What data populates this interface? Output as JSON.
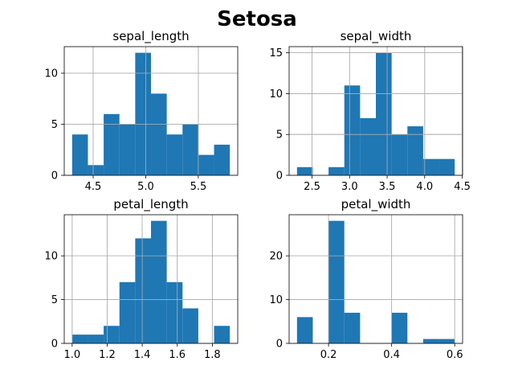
{
  "title": "Setosa",
  "chart_data": [
    {
      "type": "bar",
      "title": "sepal_length",
      "bin_edges": [
        4.3,
        4.45,
        4.6,
        4.75,
        4.9,
        5.05,
        5.2,
        5.35,
        5.5,
        5.65,
        5.8
      ],
      "counts": [
        4,
        1,
        6,
        5,
        12,
        8,
        4,
        5,
        2,
        3
      ],
      "xlim": [
        4.225,
        5.875
      ],
      "ylim": [
        0,
        12.6
      ],
      "xticks": [
        4.5,
        5.0,
        5.5
      ],
      "xtick_labels": [
        "4.5",
        "5.0",
        "5.5"
      ],
      "yticks": [
        0,
        5,
        10
      ],
      "ytick_labels": [
        "0",
        "5",
        "10"
      ],
      "grid": true
    },
    {
      "type": "bar",
      "title": "sepal_width",
      "bin_edges": [
        2.3,
        2.51,
        2.72,
        2.93,
        3.14,
        3.35,
        3.56,
        3.77,
        3.98,
        4.19,
        4.4
      ],
      "counts": [
        1,
        0,
        1,
        11,
        7,
        15,
        5,
        6,
        2,
        2
      ],
      "xlim": [
        2.195,
        4.505
      ],
      "ylim": [
        0,
        15.75
      ],
      "xticks": [
        2.5,
        3.0,
        3.5,
        4.0,
        4.5
      ],
      "xtick_labels": [
        "2.5",
        "3.0",
        "3.5",
        "4.0",
        "4.5"
      ],
      "yticks": [
        0,
        5,
        10,
        15
      ],
      "ytick_labels": [
        "0",
        "5",
        "10",
        "15"
      ],
      "grid": true
    },
    {
      "type": "bar",
      "title": "petal_length",
      "bin_edges": [
        1.0,
        1.09,
        1.18,
        1.27,
        1.36,
        1.45,
        1.54,
        1.63,
        1.72,
        1.81,
        1.9
      ],
      "counts": [
        1,
        1,
        2,
        7,
        12,
        14,
        7,
        4,
        0,
        2
      ],
      "xlim": [
        0.955,
        1.945
      ],
      "ylim": [
        0,
        14.7
      ],
      "xticks": [
        1.0,
        1.2,
        1.4,
        1.6,
        1.8
      ],
      "xtick_labels": [
        "1.0",
        "1.2",
        "1.4",
        "1.6",
        "1.8"
      ],
      "yticks": [
        0,
        5,
        10
      ],
      "ytick_labels": [
        "0",
        "5",
        "10"
      ],
      "grid": true
    },
    {
      "type": "bar",
      "title": "petal_width",
      "bin_edges": [
        0.1,
        0.15,
        0.2,
        0.25,
        0.3,
        0.35,
        0.4,
        0.45,
        0.5,
        0.55,
        0.6
      ],
      "counts": [
        6,
        0,
        28,
        7,
        0,
        0,
        7,
        0,
        1,
        1
      ],
      "xlim": [
        0.075,
        0.625
      ],
      "ylim": [
        0,
        29.4
      ],
      "xticks": [
        0.2,
        0.4,
        0.6
      ],
      "xtick_labels": [
        "0.2",
        "0.4",
        "0.6"
      ],
      "yticks": [
        0,
        10,
        20
      ],
      "ytick_labels": [
        "0",
        "10",
        "20"
      ],
      "grid": true
    }
  ]
}
